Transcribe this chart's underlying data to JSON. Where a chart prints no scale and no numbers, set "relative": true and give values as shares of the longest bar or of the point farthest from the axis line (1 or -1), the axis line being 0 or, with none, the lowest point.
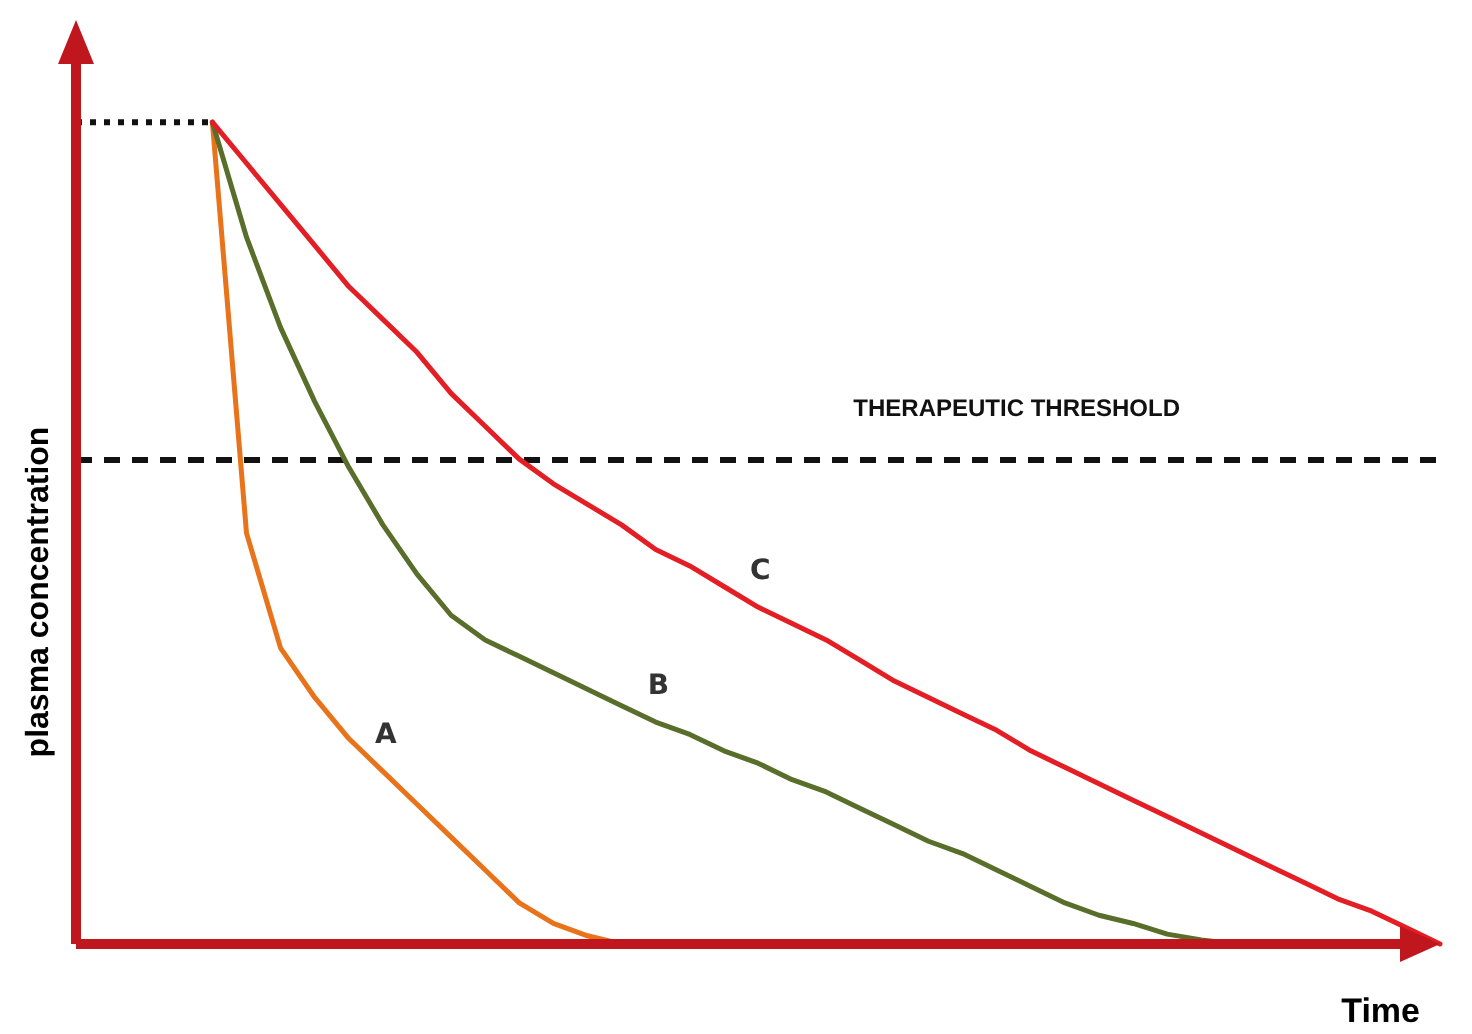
{
  "chart_data": {
    "type": "line",
    "relative": true,
    "xlabel": "Time",
    "ylabel": "plasma concentration",
    "categories": [
      null,
      null,
      null,
      null,
      null,
      null,
      null,
      null,
      null,
      null,
      null,
      null,
      null,
      null,
      null,
      null,
      null,
      null,
      null,
      null,
      null,
      null,
      null,
      null,
      null,
      null,
      null,
      null,
      null,
      null,
      null,
      null,
      null,
      null,
      null,
      null,
      null,
      null,
      null,
      null,
      null
    ],
    "series": [
      {
        "name": "A",
        "color": "#e8731a",
        "values": [
          null,
          null,
          null,
          null,
          1.0,
          0.5,
          0.36,
          0.3,
          0.25,
          0.21,
          0.17,
          0.13,
          0.09,
          0.05,
          0.025,
          0.01,
          0,
          null,
          null,
          null,
          null,
          null,
          null,
          null,
          null,
          null,
          null,
          null,
          null,
          null,
          null,
          null,
          null,
          null,
          null,
          null,
          null,
          null,
          null,
          null,
          null
        ]
      },
      {
        "name": "B",
        "color": "#5a6e2c",
        "values": [
          null,
          null,
          null,
          null,
          1.0,
          0.86,
          0.75,
          0.66,
          0.58,
          0.51,
          0.45,
          0.4,
          0.37,
          0.35,
          0.33,
          0.31,
          0.29,
          0.27,
          0.255,
          0.235,
          0.22,
          0.2,
          0.185,
          0.165,
          0.145,
          0.125,
          0.11,
          0.09,
          0.07,
          0.05,
          0.035,
          0.025,
          0.012,
          0.005,
          0,
          null,
          null,
          null,
          null,
          null,
          null
        ]
      },
      {
        "name": "C",
        "color": "#e31e24",
        "values": [
          null,
          null,
          null,
          null,
          1.0,
          0.95,
          0.9,
          0.85,
          0.8,
          0.76,
          0.72,
          0.67,
          0.63,
          0.59,
          0.56,
          0.535,
          0.51,
          0.48,
          0.46,
          0.435,
          0.41,
          0.39,
          0.37,
          0.345,
          0.32,
          0.3,
          0.28,
          0.26,
          0.235,
          0.215,
          0.195,
          0.175,
          0.155,
          0.135,
          0.115,
          0.095,
          0.075,
          0.055,
          0.04,
          0.02,
          0
        ]
      }
    ],
    "ref_lines": [
      {
        "axis": "y",
        "value": 0.589,
        "label": "THERAPEUTIC THRESHOLD",
        "line_style": "dashed",
        "color": "#111111"
      },
      {
        "axis": "y",
        "value": 1.0,
        "label": null,
        "line_style": "dotted",
        "color": "#111111"
      }
    ]
  }
}
